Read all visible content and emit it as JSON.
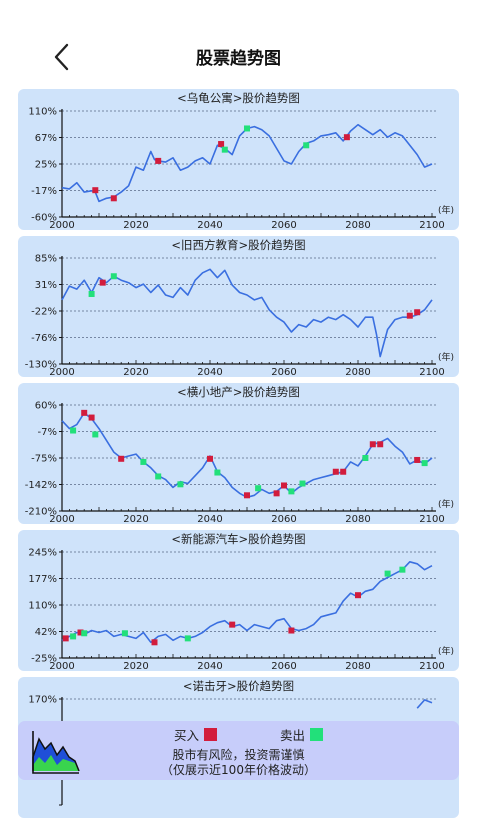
{
  "page": {
    "title": "股票趋势图"
  },
  "legend": {
    "buy_label": "买入",
    "sell_label": "卖出",
    "risk_line1": "股市有风险，投资需谨慎",
    "risk_line2": "（仅展示近100年价格波动）",
    "buy_color": "#d21c3c",
    "sell_color": "#22e07a"
  },
  "chart_data": [
    {
      "type": "line",
      "title": "<乌龟公寓>股价趋势图",
      "ylabels": [
        "110%",
        "67%",
        "25%",
        "-17%",
        "-60%"
      ],
      "ylim": [
        -60,
        110
      ],
      "xlabels": [
        "2000",
        "2020",
        "2040",
        "2060",
        "2080",
        "2100"
      ],
      "xlim": [
        2000,
        2100
      ],
      "xunit": "(年)",
      "line_color": "#3a6fe0",
      "x": [
        2000,
        2002,
        2004,
        2006,
        2008,
        2009,
        2010,
        2012,
        2014,
        2016,
        2018,
        2020,
        2022,
        2024,
        2025,
        2026,
        2028,
        2030,
        2032,
        2034,
        2036,
        2038,
        2040,
        2042,
        2044,
        2046,
        2048,
        2050,
        2052,
        2054,
        2056,
        2058,
        2060,
        2062,
        2064,
        2066,
        2068,
        2070,
        2072,
        2074,
        2076,
        2078,
        2080,
        2082,
        2084,
        2086,
        2088,
        2090,
        2092,
        2094,
        2096,
        2098,
        2100
      ],
      "y": [
        -13,
        -15,
        -5,
        -20,
        -18,
        -20,
        -35,
        -30,
        -28,
        -20,
        -10,
        20,
        15,
        45,
        32,
        30,
        28,
        35,
        15,
        20,
        30,
        35,
        25,
        55,
        50,
        40,
        70,
        82,
        85,
        80,
        70,
        50,
        30,
        25,
        45,
        58,
        62,
        70,
        72,
        75,
        62,
        78,
        88,
        80,
        72,
        80,
        68,
        75,
        70,
        55,
        40,
        20,
        25
      ],
      "buy": [
        [
          2009,
          -17
        ],
        [
          2014,
          -30
        ],
        [
          2026,
          30
        ],
        [
          2043,
          57
        ],
        [
          2077,
          68
        ]
      ],
      "sell": [
        [
          2044,
          48
        ],
        [
          2050,
          82
        ],
        [
          2066,
          55
        ]
      ]
    },
    {
      "type": "line",
      "title": "<旧西方教育>股价趋势图",
      "ylabels": [
        "85%",
        "31%",
        "-22%",
        "-76%",
        "-130%"
      ],
      "ylim": [
        -130,
        85
      ],
      "xlabels": [
        "2000",
        "2020",
        "2040",
        "2060",
        "2080",
        "2100"
      ],
      "xlim": [
        2000,
        2100
      ],
      "xunit": "(年)",
      "line_color": "#3a6fe0",
      "x": [
        2000,
        2002,
        2004,
        2006,
        2008,
        2010,
        2012,
        2014,
        2016,
        2018,
        2020,
        2022,
        2024,
        2026,
        2028,
        2030,
        2032,
        2034,
        2036,
        2038,
        2040,
        2042,
        2044,
        2046,
        2048,
        2050,
        2052,
        2054,
        2056,
        2058,
        2060,
        2062,
        2064,
        2066,
        2068,
        2070,
        2072,
        2074,
        2076,
        2078,
        2080,
        2082,
        2084,
        2085,
        2086,
        2088,
        2090,
        2092,
        2094,
        2096,
        2098,
        2100
      ],
      "y": [
        0,
        28,
        22,
        40,
        15,
        45,
        35,
        48,
        40,
        35,
        25,
        32,
        15,
        30,
        10,
        5,
        25,
        10,
        40,
        55,
        62,
        45,
        60,
        30,
        15,
        10,
        0,
        5,
        -20,
        -35,
        -45,
        -65,
        -50,
        -55,
        -40,
        -45,
        -35,
        -40,
        -30,
        -40,
        -55,
        -35,
        -35,
        -70,
        -115,
        -60,
        -40,
        -35,
        -35,
        -30,
        -20,
        0
      ],
      "buy": [
        [
          2011,
          35
        ],
        [
          2094,
          -32
        ],
        [
          2096,
          -25
        ]
      ],
      "sell": [
        [
          2008,
          12
        ],
        [
          2014,
          48
        ]
      ]
    },
    {
      "type": "line",
      "title": "<横小地产>股价趋势图",
      "ylabels": [
        "60%",
        "-7%",
        "-75%",
        "-142%",
        "-210%"
      ],
      "ylim": [
        -210,
        60
      ],
      "xlabels": [
        "2000",
        "2020",
        "2040",
        "2060",
        "2080",
        "2100"
      ],
      "xlim": [
        2000,
        2100
      ],
      "xunit": "(年)",
      "line_color": "#3a6fe0",
      "x": [
        2000,
        2002,
        2004,
        2006,
        2008,
        2010,
        2012,
        2014,
        2016,
        2018,
        2020,
        2022,
        2024,
        2026,
        2028,
        2030,
        2032,
        2034,
        2036,
        2038,
        2040,
        2042,
        2044,
        2046,
        2048,
        2050,
        2052,
        2054,
        2056,
        2058,
        2060,
        2062,
        2064,
        2066,
        2068,
        2070,
        2072,
        2074,
        2076,
        2078,
        2080,
        2082,
        2084,
        2086,
        2088,
        2090,
        2092,
        2094,
        2096,
        2098,
        2100
      ],
      "y": [
        20,
        0,
        10,
        40,
        25,
        0,
        -30,
        -60,
        -75,
        -70,
        -65,
        -85,
        -100,
        -120,
        -130,
        -150,
        -135,
        -140,
        -120,
        -100,
        -70,
        -110,
        -125,
        -150,
        -165,
        -175,
        -170,
        -155,
        -165,
        -160,
        -145,
        -165,
        -150,
        -140,
        -130,
        -125,
        -120,
        -115,
        -110,
        -85,
        -95,
        -70,
        -40,
        -35,
        -25,
        -45,
        -60,
        -90,
        -80,
        -90,
        -75
      ],
      "buy": [
        [
          2006,
          40
        ],
        [
          2008,
          28
        ],
        [
          2016,
          -77
        ],
        [
          2040,
          -77
        ],
        [
          2050,
          -170
        ],
        [
          2058,
          -165
        ],
        [
          2060,
          -145
        ],
        [
          2074,
          -110
        ],
        [
          2076,
          -110
        ],
        [
          2084,
          -40
        ],
        [
          2086,
          -40
        ],
        [
          2096,
          -80
        ]
      ],
      "sell": [
        [
          2003,
          -5
        ],
        [
          2009,
          -15
        ],
        [
          2022,
          -85
        ],
        [
          2026,
          -122
        ],
        [
          2032,
          -142
        ],
        [
          2042,
          -112
        ],
        [
          2053,
          -152
        ],
        [
          2062,
          -160
        ],
        [
          2065,
          -140
        ],
        [
          2082,
          -75
        ],
        [
          2098,
          -88
        ]
      ]
    },
    {
      "type": "line",
      "title": "<新能源汽车>股价趋势图",
      "ylabels": [
        "245%",
        "177%",
        "110%",
        "42%",
        "-25%"
      ],
      "ylim": [
        -25,
        245
      ],
      "xlabels": [
        "2000",
        "2020",
        "2040",
        "2060",
        "2080",
        "2100"
      ],
      "xlim": [
        2000,
        2100
      ],
      "xunit": "(年)",
      "line_color": "#3a6fe0",
      "x": [
        2000,
        2002,
        2004,
        2006,
        2008,
        2010,
        2012,
        2014,
        2016,
        2018,
        2020,
        2022,
        2024,
        2026,
        2028,
        2030,
        2032,
        2034,
        2036,
        2038,
        2040,
        2042,
        2044,
        2046,
        2048,
        2050,
        2052,
        2054,
        2056,
        2058,
        2060,
        2062,
        2064,
        2066,
        2068,
        2070,
        2072,
        2074,
        2076,
        2078,
        2080,
        2082,
        2084,
        2086,
        2088,
        2090,
        2092,
        2094,
        2096,
        2098,
        2100
      ],
      "y": [
        20,
        30,
        40,
        35,
        45,
        40,
        45,
        30,
        35,
        30,
        25,
        40,
        15,
        30,
        35,
        20,
        30,
        25,
        30,
        40,
        55,
        65,
        70,
        55,
        60,
        45,
        60,
        55,
        50,
        70,
        75,
        50,
        45,
        50,
        60,
        80,
        85,
        90,
        120,
        140,
        130,
        145,
        150,
        170,
        180,
        190,
        200,
        220,
        215,
        200,
        210
      ],
      "buy": [
        [
          2001,
          25
        ],
        [
          2005,
          40
        ],
        [
          2025,
          15
        ],
        [
          2046,
          60
        ],
        [
          2062,
          45
        ],
        [
          2080,
          135
        ]
      ],
      "sell": [
        [
          2003,
          30
        ],
        [
          2006,
          38
        ],
        [
          2017,
          38
        ],
        [
          2034,
          25
        ],
        [
          2088,
          190
        ],
        [
          2092,
          200
        ]
      ]
    },
    {
      "type": "line",
      "title": "<诺击牙>股价趋势图",
      "ylabels": [
        "170%"
      ],
      "ylim": [
        -60,
        170
      ],
      "xlabels": [],
      "xlim": [
        2000,
        2100
      ],
      "xunit": "",
      "line_color": "#3a6fe0",
      "x": [
        2096,
        2098,
        2100
      ],
      "y": [
        150,
        168,
        162
      ],
      "buy": [],
      "sell": []
    }
  ]
}
